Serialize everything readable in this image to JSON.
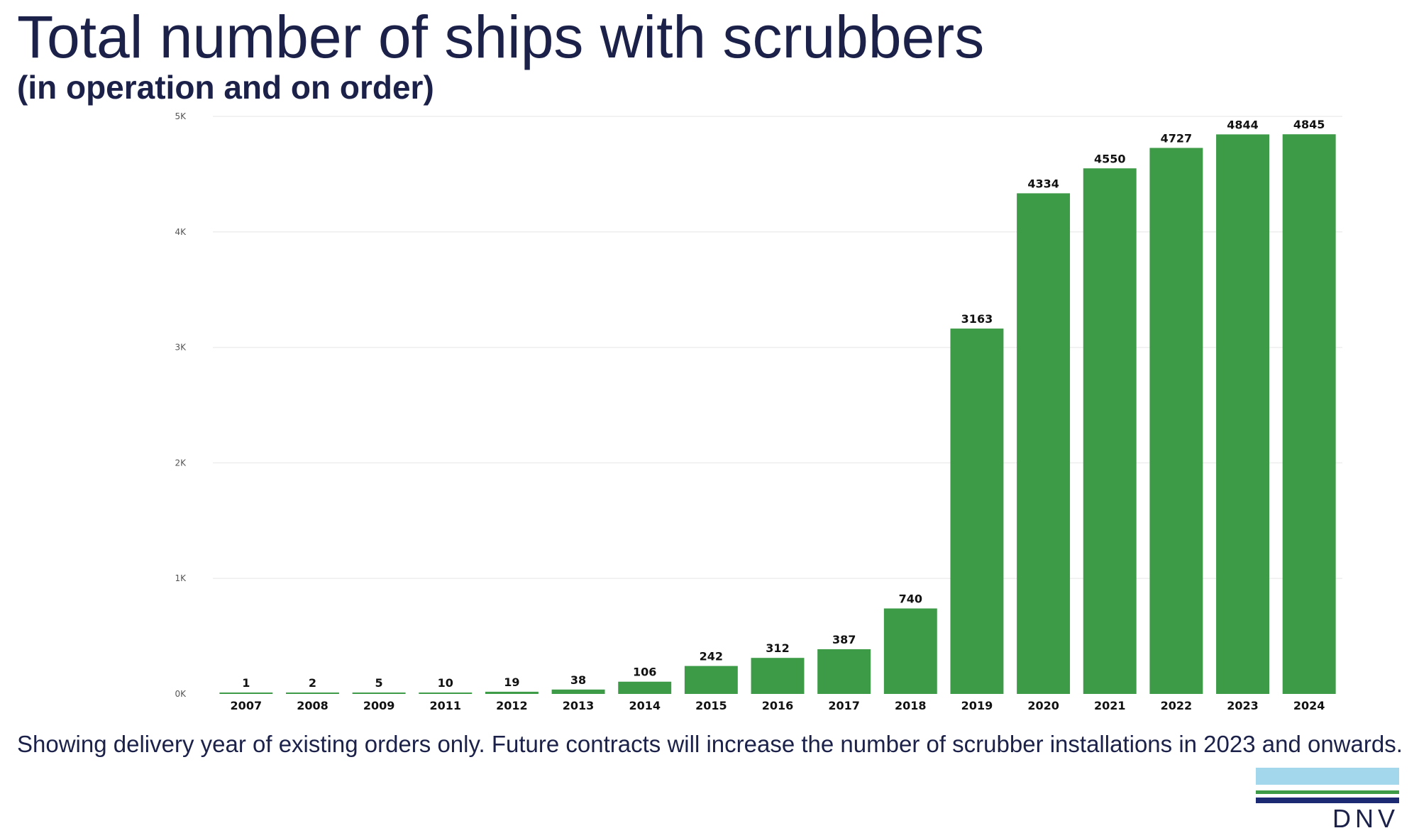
{
  "slide": {
    "title": "Total number of ships with scrubbers",
    "subtitle": "(in operation and on order)",
    "footnote": "Showing delivery year of existing orders only. Future contracts will increase the number of scrubber installations in 2023 and onwards."
  },
  "logo": {
    "text": "DNV",
    "colors": {
      "light": "#a3d7eb",
      "green": "#3d9a47",
      "navy": "#1b2a72"
    }
  },
  "chart_data": {
    "type": "bar",
    "categories": [
      "2007",
      "2008",
      "2009",
      "2011",
      "2012",
      "2013",
      "2014",
      "2015",
      "2016",
      "2017",
      "2018",
      "2019",
      "2020",
      "2021",
      "2022",
      "2023",
      "2024"
    ],
    "values": [
      1,
      2,
      5,
      10,
      19,
      38,
      106,
      242,
      312,
      387,
      740,
      3163,
      4334,
      4550,
      4727,
      4844,
      4845
    ],
    "ylim": [
      0,
      5000
    ],
    "yticks": [
      0,
      1000,
      2000,
      3000,
      4000,
      5000
    ],
    "ytick_labels": [
      "0K",
      "1K",
      "2K",
      "3K",
      "4K",
      "5K"
    ],
    "xlabel": "",
    "ylabel": "",
    "grid": true,
    "data_labels": true,
    "bar_color": "#3d9a47",
    "grid_color": "#eeeeee"
  }
}
